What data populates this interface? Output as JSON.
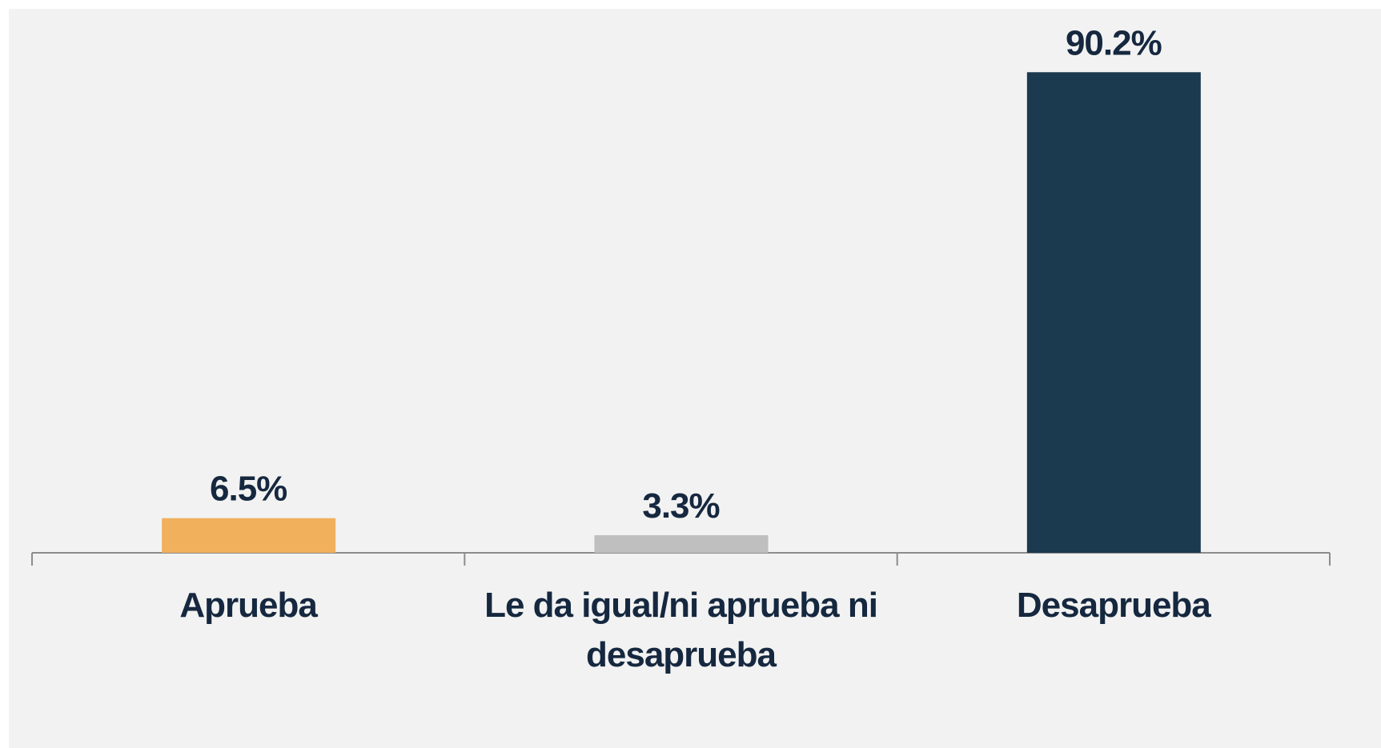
{
  "chart_data": {
    "type": "bar",
    "categories": [
      "Aprueba",
      "Le da igual/ni aprueba ni desaprueba",
      "Desaprueba"
    ],
    "values": [
      6.5,
      3.3,
      90.2
    ],
    "value_labels": [
      "6.5%",
      "3.3%",
      "90.2%"
    ],
    "colors": [
      "#f0b05c",
      "#bfbfbf",
      "#1b394f"
    ],
    "ylim": [
      0,
      100
    ]
  }
}
